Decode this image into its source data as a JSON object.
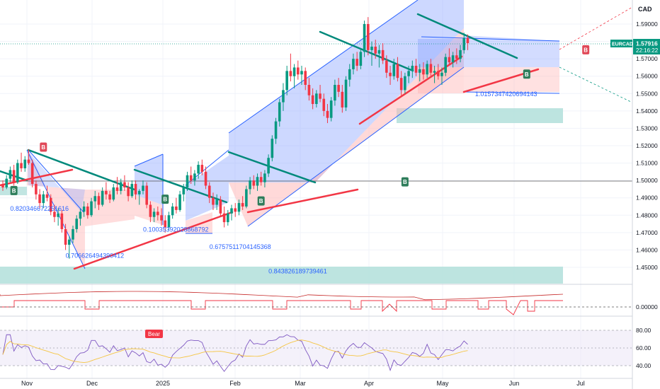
{
  "chart_data": {
    "type": "candlestick",
    "instrument": "EURCAD",
    "currency_label": "CAD",
    "last_price": "1.57916",
    "countdown": "22:16:22",
    "y_ticks": [
      "1.59000",
      "1.58000",
      "1.57000",
      "1.56000",
      "1.55000",
      "1.54000",
      "1.53000",
      "1.52000",
      "1.51000",
      "1.50000",
      "1.49000",
      "1.48000",
      "1.47000",
      "1.46000",
      "1.45000"
    ],
    "x_ticks": [
      "Nov",
      "Dec",
      "2025",
      "Feb",
      "Mar",
      "Apr",
      "May",
      "Jun",
      "Jul"
    ],
    "ylim": [
      1.437,
      1.598
    ],
    "candles": [
      [
        1.498,
        1.5,
        1.494,
        1.496
      ],
      [
        1.496,
        1.503,
        1.495,
        1.501
      ],
      [
        1.501,
        1.508,
        1.499,
        1.506
      ],
      [
        1.506,
        1.509,
        1.497,
        1.499
      ],
      [
        1.499,
        1.512,
        1.498,
        1.51
      ],
      [
        1.51,
        1.516,
        1.505,
        1.507
      ],
      [
        1.507,
        1.514,
        1.505,
        1.512
      ],
      [
        1.512,
        1.518,
        1.509,
        1.51
      ],
      [
        1.51,
        1.512,
        1.496,
        1.498
      ],
      [
        1.498,
        1.5,
        1.489,
        1.492
      ],
      [
        1.492,
        1.495,
        1.484,
        1.487
      ],
      [
        1.487,
        1.494,
        1.484,
        1.492
      ],
      [
        1.492,
        1.497,
        1.488,
        1.49
      ],
      [
        1.49,
        1.492,
        1.48,
        1.482
      ],
      [
        1.482,
        1.486,
        1.476,
        1.479
      ],
      [
        1.479,
        1.484,
        1.474,
        1.481
      ],
      [
        1.481,
        1.483,
        1.47,
        1.472
      ],
      [
        1.472,
        1.475,
        1.46,
        1.463
      ],
      [
        1.463,
        1.468,
        1.455,
        1.466
      ],
      [
        1.466,
        1.474,
        1.464,
        1.472
      ],
      [
        1.472,
        1.48,
        1.47,
        1.478
      ],
      [
        1.478,
        1.484,
        1.474,
        1.482
      ],
      [
        1.482,
        1.488,
        1.479,
        1.485
      ],
      [
        1.485,
        1.487,
        1.478,
        1.48
      ],
      [
        1.48,
        1.49,
        1.479,
        1.488
      ],
      [
        1.488,
        1.494,
        1.484,
        1.491
      ],
      [
        1.491,
        1.493,
        1.483,
        1.486
      ],
      [
        1.486,
        1.496,
        1.485,
        1.494
      ],
      [
        1.494,
        1.499,
        1.489,
        1.492
      ],
      [
        1.492,
        1.494,
        1.487,
        1.489
      ],
      [
        1.489,
        1.498,
        1.488,
        1.496
      ],
      [
        1.496,
        1.502,
        1.492,
        1.494
      ],
      [
        1.494,
        1.501,
        1.492,
        1.499
      ],
      [
        1.499,
        1.503,
        1.494,
        1.496
      ],
      [
        1.496,
        1.499,
        1.488,
        1.491
      ],
      [
        1.491,
        1.5,
        1.49,
        1.498
      ],
      [
        1.498,
        1.5,
        1.489,
        1.492
      ],
      [
        1.492,
        1.495,
        1.486,
        1.494
      ],
      [
        1.494,
        1.5,
        1.492,
        1.497
      ],
      [
        1.497,
        1.499,
        1.484,
        1.486
      ],
      [
        1.486,
        1.488,
        1.476,
        1.479
      ],
      [
        1.479,
        1.484,
        1.476,
        1.482
      ],
      [
        1.482,
        1.485,
        1.477,
        1.48
      ],
      [
        1.48,
        1.484,
        1.474,
        1.477
      ],
      [
        1.477,
        1.48,
        1.47,
        1.473
      ],
      [
        1.473,
        1.482,
        1.471,
        1.48
      ],
      [
        1.48,
        1.487,
        1.478,
        1.485
      ],
      [
        1.485,
        1.49,
        1.481,
        1.483
      ],
      [
        1.483,
        1.494,
        1.482,
        1.492
      ],
      [
        1.492,
        1.498,
        1.488,
        1.496
      ],
      [
        1.496,
        1.505,
        1.494,
        1.503
      ],
      [
        1.503,
        1.508,
        1.498,
        1.5
      ],
      [
        1.5,
        1.506,
        1.497,
        1.504
      ],
      [
        1.504,
        1.511,
        1.501,
        1.509
      ],
      [
        1.509,
        1.512,
        1.503,
        1.505
      ],
      [
        1.505,
        1.508,
        1.495,
        1.497
      ],
      [
        1.497,
        1.499,
        1.487,
        1.49
      ],
      [
        1.49,
        1.493,
        1.483,
        1.486
      ],
      [
        1.486,
        1.492,
        1.483,
        1.489
      ],
      [
        1.489,
        1.491,
        1.479,
        1.481
      ],
      [
        1.481,
        1.485,
        1.473,
        1.476
      ],
      [
        1.476,
        1.483,
        1.474,
        1.481
      ],
      [
        1.481,
        1.486,
        1.477,
        1.484
      ],
      [
        1.484,
        1.487,
        1.479,
        1.482
      ],
      [
        1.482,
        1.489,
        1.48,
        1.487
      ],
      [
        1.487,
        1.491,
        1.483,
        1.485
      ],
      [
        1.485,
        1.497,
        1.484,
        1.495
      ],
      [
        1.495,
        1.502,
        1.492,
        1.5
      ],
      [
        1.5,
        1.503,
        1.495,
        1.497
      ],
      [
        1.497,
        1.504,
        1.494,
        1.502
      ],
      [
        1.502,
        1.505,
        1.497,
        1.499
      ],
      [
        1.499,
        1.506,
        1.496,
        1.504
      ],
      [
        1.504,
        1.515,
        1.502,
        1.513
      ],
      [
        1.513,
        1.526,
        1.511,
        1.524
      ],
      [
        1.524,
        1.536,
        1.521,
        1.534
      ],
      [
        1.534,
        1.547,
        1.531,
        1.545
      ],
      [
        1.545,
        1.556,
        1.54,
        1.552
      ],
      [
        1.552,
        1.566,
        1.549,
        1.563
      ],
      [
        1.563,
        1.573,
        1.557,
        1.56
      ],
      [
        1.56,
        1.567,
        1.553,
        1.565
      ],
      [
        1.565,
        1.569,
        1.558,
        1.561
      ],
      [
        1.561,
        1.566,
        1.555,
        1.563
      ],
      [
        1.563,
        1.565,
        1.552,
        1.555
      ],
      [
        1.555,
        1.559,
        1.546,
        1.549
      ],
      [
        1.549,
        1.553,
        1.541,
        1.544
      ],
      [
        1.544,
        1.552,
        1.542,
        1.55
      ],
      [
        1.55,
        1.555,
        1.545,
        1.547
      ],
      [
        1.547,
        1.55,
        1.537,
        1.54
      ],
      [
        1.54,
        1.544,
        1.533,
        1.536
      ],
      [
        1.536,
        1.548,
        1.534,
        1.546
      ],
      [
        1.546,
        1.558,
        1.543,
        1.555
      ],
      [
        1.555,
        1.559,
        1.548,
        1.551
      ],
      [
        1.551,
        1.555,
        1.539,
        1.542
      ],
      [
        1.542,
        1.56,
        1.54,
        1.558
      ],
      [
        1.558,
        1.567,
        1.554,
        1.564
      ],
      [
        1.564,
        1.573,
        1.561,
        1.57
      ],
      [
        1.57,
        1.574,
        1.563,
        1.566
      ],
      [
        1.566,
        1.576,
        1.564,
        1.574
      ],
      [
        1.574,
        1.592,
        1.571,
        1.59
      ],
      [
        1.59,
        1.594,
        1.572,
        1.575
      ],
      [
        1.575,
        1.58,
        1.566,
        1.577
      ],
      [
        1.577,
        1.581,
        1.57,
        1.573
      ],
      [
        1.573,
        1.578,
        1.565,
        1.575
      ],
      [
        1.575,
        1.579,
        1.567,
        1.569
      ],
      [
        1.569,
        1.572,
        1.559,
        1.562
      ],
      [
        1.562,
        1.566,
        1.555,
        1.56
      ],
      [
        1.56,
        1.57,
        1.558,
        1.567
      ],
      [
        1.567,
        1.571,
        1.557,
        1.559
      ],
      [
        1.559,
        1.563,
        1.549,
        1.552
      ],
      [
        1.552,
        1.562,
        1.55,
        1.56
      ],
      [
        1.56,
        1.566,
        1.556,
        1.563
      ],
      [
        1.563,
        1.569,
        1.559,
        1.566
      ],
      [
        1.566,
        1.57,
        1.56,
        1.562
      ],
      [
        1.562,
        1.567,
        1.557,
        1.564
      ],
      [
        1.564,
        1.568,
        1.558,
        1.561
      ],
      [
        1.561,
        1.569,
        1.559,
        1.567
      ],
      [
        1.567,
        1.57,
        1.56,
        1.562
      ],
      [
        1.562,
        1.566,
        1.556,
        1.563
      ],
      [
        1.563,
        1.567,
        1.558,
        1.56
      ],
      [
        1.56,
        1.565,
        1.555,
        1.562
      ],
      [
        1.562,
        1.573,
        1.56,
        1.571
      ],
      [
        1.571,
        1.576,
        1.566,
        1.568
      ],
      [
        1.568,
        1.574,
        1.565,
        1.572
      ],
      [
        1.572,
        1.576,
        1.567,
        1.57
      ],
      [
        1.57,
        1.578,
        1.568,
        1.575
      ],
      [
        1.575,
        1.585,
        1.573,
        1.582
      ],
      [
        1.582,
        1.584,
        1.575,
        1.579
      ]
    ],
    "price_badges": [
      {
        "label": "B",
        "type": "buy",
        "i": 3,
        "price": 1.494
      },
      {
        "label": "B",
        "type": "sell",
        "i": 11,
        "price": 1.519
      },
      {
        "label": "B",
        "type": "buy",
        "i": 44,
        "price": 1.489
      },
      {
        "label": "B",
        "type": "buy",
        "i": 70,
        "price": 1.488
      },
      {
        "label": "B",
        "type": "buy",
        "i": 109,
        "price": 1.499
      },
      {
        "label": "B",
        "type": "buy",
        "i": 142,
        "price": 1.561
      },
      {
        "label": "B",
        "type": "sell",
        "i": 158,
        "price": 1.575
      },
      {
        "label": "B",
        "type": "sell",
        "i": 183,
        "price": 1.573
      },
      {
        "label": "B",
        "type": "buy",
        "i": 189,
        "price": 1.553
      }
    ],
    "annotations": [
      {
        "text": "0.820346672251616",
        "price": 1.4825,
        "date_i": 2
      },
      {
        "text": "0.706626494390412",
        "price": 1.4555,
        "date_i": 17
      },
      {
        "text": "0.10035392028868792",
        "price": 1.4705,
        "date_i": 38
      },
      {
        "text": "0.6757511704145368",
        "price": 1.4605,
        "date_i": 56
      },
      {
        "text": "0.843826189739461",
        "price": 1.4465,
        "date_i": 72
      },
      {
        "text": "1.0157347420694143",
        "price": 1.5485,
        "date_i": 128
      }
    ],
    "indicator_ticks": [
      "0.00000"
    ],
    "rsi_ticks": [
      "80.00",
      "60.00",
      "40.00"
    ],
    "bear_label": "Bear"
  }
}
